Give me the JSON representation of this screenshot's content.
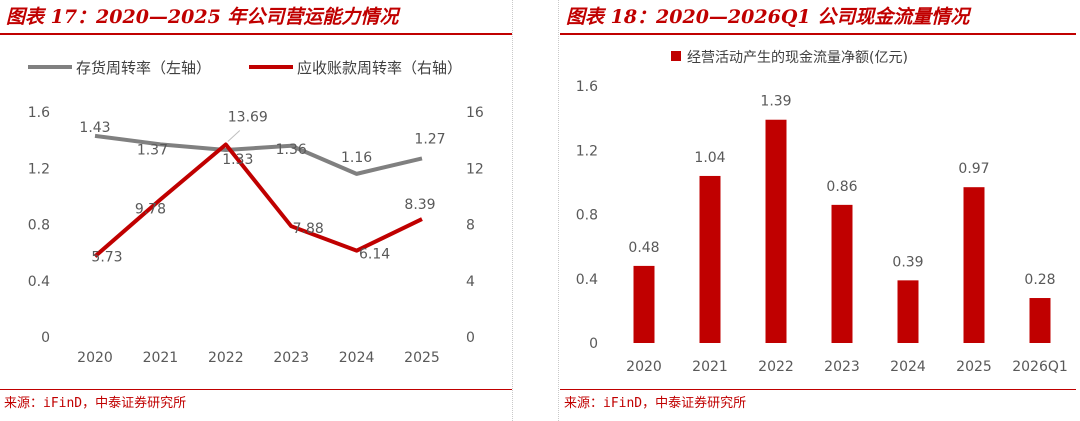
{
  "left": {
    "title": "图表 17：2020—2025 年公司营运能力情况",
    "source": "来源：iFinD，中泰证券研究所",
    "chart_data": {
      "type": "line",
      "x": [
        "2020",
        "2021",
        "2022",
        "2023",
        "2024",
        "2025"
      ],
      "series": [
        {
          "name": "存货周转率（左轴）",
          "axis": "left",
          "values": [
            1.43,
            1.37,
            1.33,
            1.36,
            1.16,
            1.27
          ],
          "color": "#808080"
        },
        {
          "name": "应收账款周转率（右轴）",
          "axis": "right",
          "values": [
            5.73,
            9.78,
            13.69,
            7.88,
            6.14,
            8.39
          ],
          "color": "#c00000"
        }
      ],
      "ylim_left": [
        0,
        1.6
      ],
      "yticks_left": [
        "0",
        "0.4",
        "0.8",
        "1.2",
        "1.6"
      ],
      "ylim_right": [
        0,
        16
      ],
      "yticks_right": [
        "0",
        "4",
        "8",
        "12",
        "16"
      ],
      "legend": "top",
      "grid": false
    }
  },
  "right": {
    "title": "图表 18：2020—2026Q1 公司现金流量情况",
    "source": "来源：iFinD，中泰证券研究所",
    "chart_data": {
      "type": "bar",
      "categories": [
        "2020",
        "2021",
        "2022",
        "2023",
        "2024",
        "2025",
        "2026Q1"
      ],
      "series": [
        {
          "name": "经营活动产生的现金流量净额(亿元)",
          "values": [
            0.48,
            1.04,
            1.39,
            0.86,
            0.39,
            0.97,
            0.28
          ],
          "color": "#c00000"
        }
      ],
      "ylim": [
        0,
        1.6
      ],
      "yticks": [
        "0",
        "0.4",
        "0.8",
        "1.2",
        "1.6"
      ],
      "legend": "top",
      "grid": false
    }
  }
}
